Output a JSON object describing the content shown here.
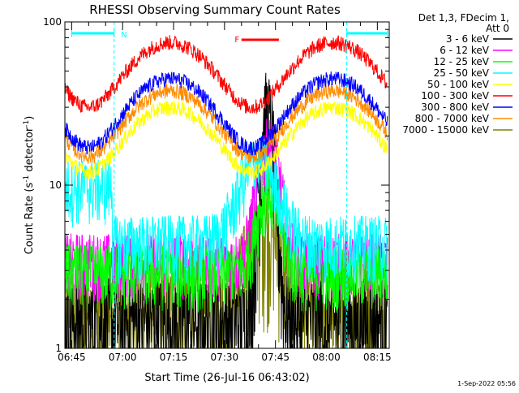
{
  "chart_data": {
    "type": "line",
    "title": "RHESSI Observing Summary Count Rates",
    "xlabel": "Start Time (26-Jul-16 06:43:02)",
    "ylabel_main": "Count Rate (s",
    "ylabel_exp1": "-1",
    "ylabel_mid": " detector",
    "ylabel_exp2": "-1",
    "ylabel_end": ")",
    "y_scale": "log",
    "ylim": [
      1,
      100
    ],
    "y_tick_labels": [
      "1",
      "10",
      "100"
    ],
    "x_unit": "minutes since 06:45",
    "xlim": [
      -2.0,
      93.5
    ],
    "x_tick_labels": [
      "06:45",
      "07:00",
      "07:15",
      "07:30",
      "07:45",
      "08:00",
      "08:15"
    ],
    "x_ticks": [
      0,
      15,
      30,
      45,
      60,
      75,
      90
    ],
    "legend_header": [
      "Det 1,3, FDecim 1,",
      "Att 0"
    ],
    "legend_placement": "right-outside",
    "timestamp": "1-Sep-2022 05:56",
    "annotations": {
      "night_label": "N",
      "flare_label": "F"
    },
    "flag_bars": [
      {
        "x_start": 0,
        "x_end": 12.5,
        "color": "#00ffff"
      },
      {
        "x_start": 81,
        "x_end": 93,
        "color": "#00ffff"
      }
    ],
    "flare_bar": {
      "x_start": 50,
      "x_end": 61,
      "color": "#ff0000"
    },
    "eclipse_lines": [
      12.5,
      81
    ],
    "series": [
      {
        "name": "3 - 6 keV",
        "color": "#000000",
        "base": 1.5,
        "peak": 28,
        "t_peak": 57.5,
        "width": 2.5
      },
      {
        "name": "6 - 12 keV",
        "color": "#ff00ff",
        "base": 3.5,
        "peak": 18,
        "t_peak": 58,
        "width": 4
      },
      {
        "name": "12 - 25 keV",
        "color": "#00ff00",
        "base": 3.0,
        "peak": 9,
        "t_peak": 58,
        "width": 4
      },
      {
        "name": "25 - 50 keV",
        "color": "#00ffff",
        "base": 4.5,
        "peak": 14,
        "t_peak": 55,
        "width": 7
      },
      {
        "name": "50 - 100 keV",
        "color": "#ffff00",
        "base": 12,
        "peak": 30,
        "t_peak": 55,
        "width": 11
      },
      {
        "name": "100 - 300 keV",
        "color": "#ff0000",
        "base": 30,
        "peak": 75,
        "t_peak": 55,
        "width": 11
      },
      {
        "name": "300 - 800 keV",
        "color": "#0000ff",
        "base": 17,
        "peak": 45,
        "t_peak": 55,
        "width": 11
      },
      {
        "name": "800 - 7000 keV",
        "color": "#ff8c00",
        "base": 15,
        "peak": 38,
        "t_peak": 55,
        "width": 11
      },
      {
        "name": "7000 - 15000 keV",
        "color": "#808000",
        "base": 1.8,
        "peak": 6,
        "t_peak": 57,
        "width": 6
      }
    ]
  }
}
